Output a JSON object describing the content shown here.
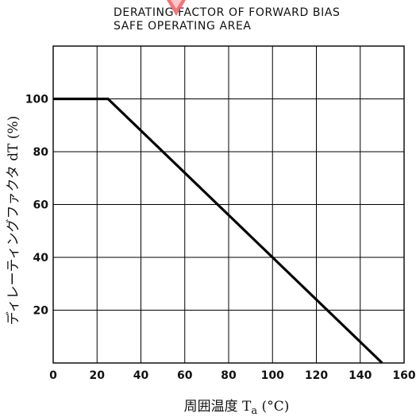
{
  "chart_data": {
    "type": "line",
    "title": [
      "DERATING FACTOR OF FORWARD BIAS",
      "SAFE OPERATING AREA"
    ],
    "xlabel": "周囲温度",
    "xlabel_symbol": "T",
    "xlabel_subscript": "a",
    "xlabel_unit": "(°C)",
    "ylabel": "ディレーティングファクタ",
    "ylabel_symbol": "dT",
    "ylabel_unit": "(%)",
    "xlim": [
      0,
      160
    ],
    "ylim": [
      0,
      120
    ],
    "xticks": [
      0,
      20,
      40,
      60,
      80,
      100,
      120,
      140,
      160
    ],
    "yticks": [
      20,
      40,
      60,
      80,
      100
    ],
    "x_gridlines": [
      0,
      20,
      40,
      60,
      80,
      100,
      120,
      140,
      160
    ],
    "y_gridlines": [
      20,
      40,
      60,
      80,
      100,
      120
    ],
    "grid": true,
    "series": [
      {
        "x": [
          0,
          25,
          150
        ],
        "y": [
          100,
          100,
          0
        ]
      }
    ]
  },
  "colors": {
    "line": "#000000",
    "grid": "#000000",
    "logo": "#e8333c"
  }
}
